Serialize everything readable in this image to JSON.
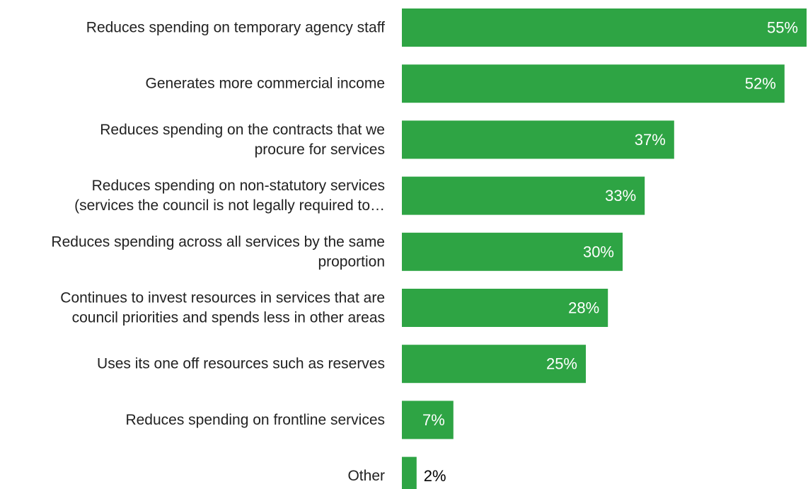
{
  "chart_data": {
    "type": "bar",
    "orientation": "horizontal",
    "categories": [
      [
        "Reduces spending on temporary agency staff"
      ],
      [
        "Generates more commercial income"
      ],
      [
        "Reduces spending on the contracts that we",
        "procure for services"
      ],
      [
        "Reduces spending on non-statutory services",
        "(services the council is not legally required to…"
      ],
      [
        "Reduces spending across all services by the same",
        "proportion"
      ],
      [
        "Continues to invest resources in services that are",
        "council priorities and spends less in other areas"
      ],
      [
        "Uses its one off resources such as reserves"
      ],
      [
        "Reduces spending on frontline services"
      ],
      [
        "Other"
      ]
    ],
    "values": [
      55,
      52,
      37,
      33,
      30,
      28,
      25,
      7,
      2
    ],
    "value_labels": [
      "55%",
      "52%",
      "37%",
      "33%",
      "30%",
      "28%",
      "25%",
      "7%",
      "2%"
    ],
    "xlim": [
      0,
      55
    ],
    "bar_color": "#2ea444",
    "label_color_inside": "#ffffff",
    "label_color_outside": "#000000",
    "grid": false,
    "legend": "none"
  }
}
